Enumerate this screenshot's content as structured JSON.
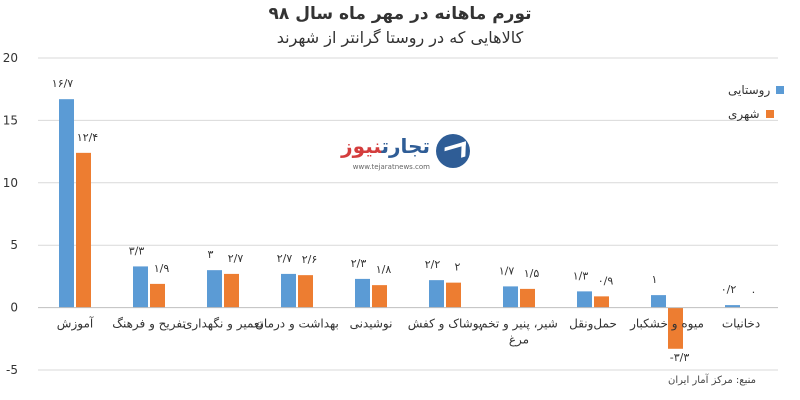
{
  "title": "تورم ماهانه در مهر ماه سال ۹۸",
  "subtitle": "کالاهایی که در روستا گرانتر از شهرند",
  "source": "منبع: مرکز آمار ایران",
  "logo": {
    "name_part1": "تجارت",
    "name_part2": "نیوز",
    "url": "www.tejaratnews.com"
  },
  "colors": {
    "rural": "#5b9bd5",
    "urban": "#ed7d31",
    "grid": "#d9d9d9"
  },
  "chart_data": {
    "type": "bar",
    "categories": [
      "آموزش",
      "تفریح و فرهنگ",
      "تعمیر و نگهداری",
      "بهداشت و درمان",
      "نوشیدنی",
      "پوشاک و کفش",
      "شیر، پنیر و تخم مرغ",
      "حمل‌ونقل",
      "میوه و خشکبار",
      "دخانیات"
    ],
    "series": [
      {
        "name": "روستایی",
        "values": [
          16.7,
          3.3,
          3,
          2.7,
          2.3,
          2.2,
          1.7,
          1.3,
          1,
          0.2
        ],
        "labels": [
          "۱۶/۷",
          "۳/۳",
          "۳",
          "۲/۷",
          "۲/۳",
          "۲/۲",
          "۱/۷",
          "۱/۳",
          "۱",
          "۰/۲"
        ]
      },
      {
        "name": "شهری",
        "values": [
          12.4,
          1.9,
          2.7,
          2.6,
          1.8,
          2,
          1.5,
          0.9,
          -3.3,
          0
        ],
        "labels": [
          "۱۲/۴",
          "۱/۹",
          "۲/۷",
          "۲/۶",
          "۱/۸",
          "۲",
          "۱/۵",
          "۰/۹",
          "-۳/۳",
          "۰"
        ]
      }
    ],
    "yticks": [
      20,
      15,
      10,
      5,
      0,
      -5
    ],
    "ytick_labels": [
      "20",
      "15",
      "10",
      "5",
      "0",
      "-5"
    ],
    "ylim": [
      -5,
      20
    ],
    "grid": true,
    "legend_position": "top-right"
  }
}
